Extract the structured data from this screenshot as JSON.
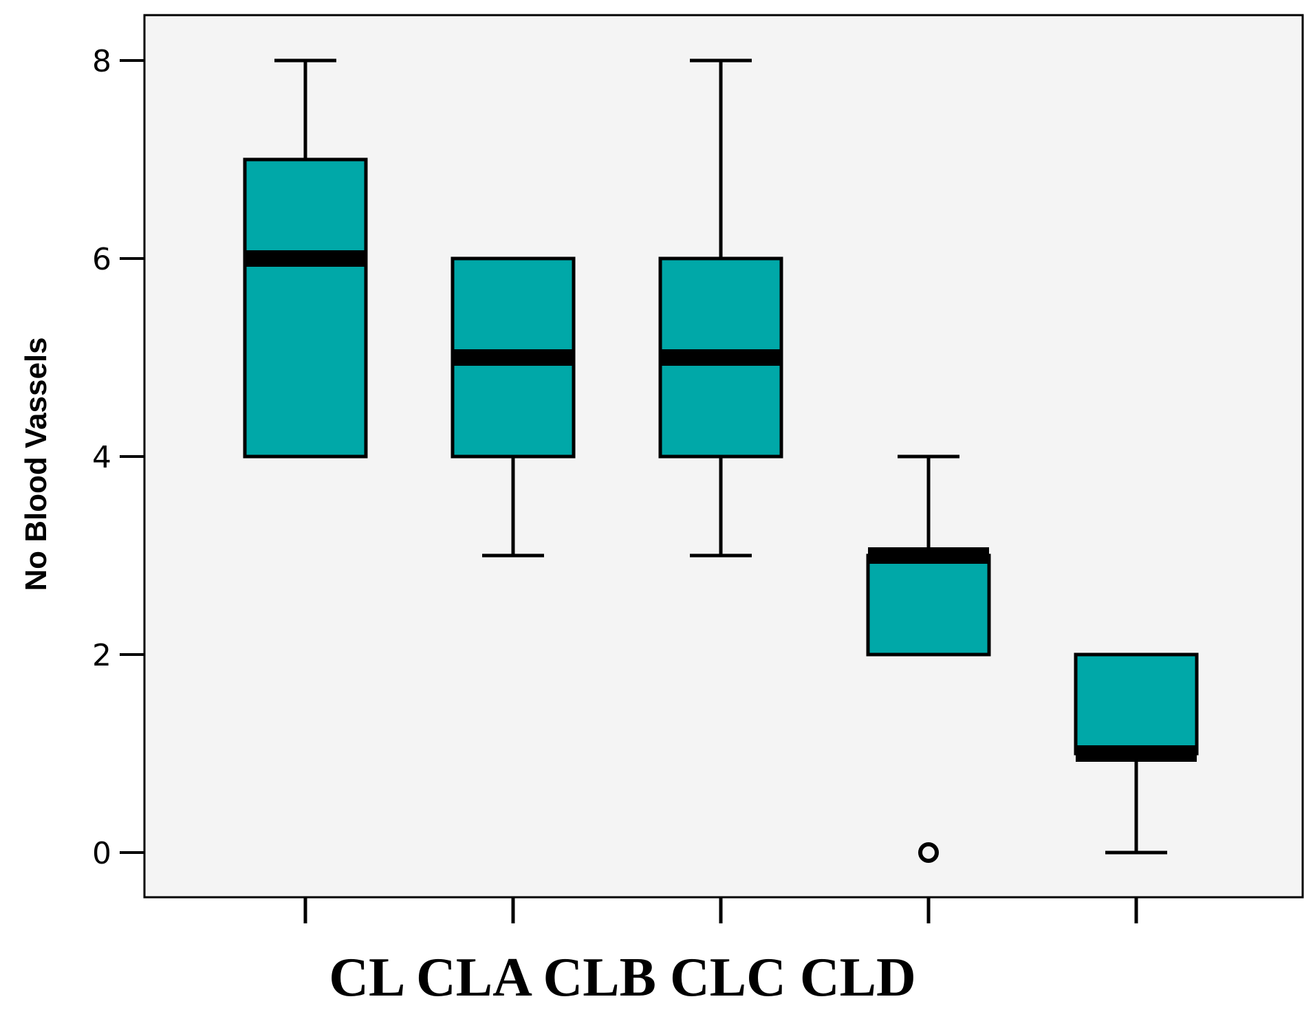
{
  "chart_data": {
    "type": "box",
    "ylabel": "No Blood Vassels",
    "xlabel": "CL CLA CLB CLC CLD",
    "categories": [
      "CL",
      "CLA",
      "CLB",
      "CLC",
      "CLD"
    ],
    "ylim": [
      -0.6,
      8.5
    ],
    "yticks": [
      0,
      2,
      4,
      6,
      8
    ],
    "ytick_labels": [
      "0",
      "2",
      "4",
      "6",
      "8"
    ],
    "boxes": [
      {
        "category": "CL",
        "whisker_low": 4,
        "q1": 4,
        "median": 6,
        "q3": 7,
        "whisker_high": 8,
        "outliers": []
      },
      {
        "category": "CLA",
        "whisker_low": 3,
        "q1": 4,
        "median": 5,
        "q3": 6,
        "whisker_high": 6,
        "outliers": []
      },
      {
        "category": "CLB",
        "whisker_low": 3,
        "q1": 4,
        "median": 5,
        "q3": 6,
        "whisker_high": 8,
        "outliers": []
      },
      {
        "category": "CLC",
        "whisker_low": 2,
        "q1": 2,
        "median": 3,
        "q3": 3,
        "whisker_high": 4,
        "outliers": [
          0
        ]
      },
      {
        "category": "CLD",
        "whisker_low": 0,
        "q1": 1,
        "median": 1,
        "q3": 2,
        "whisker_high": 2,
        "outliers": []
      }
    ],
    "colors": {
      "box_fill": "#00a8a8",
      "plot_background": "#f4f4f4",
      "stroke": "#000000"
    },
    "grid": false,
    "legend": "none"
  }
}
